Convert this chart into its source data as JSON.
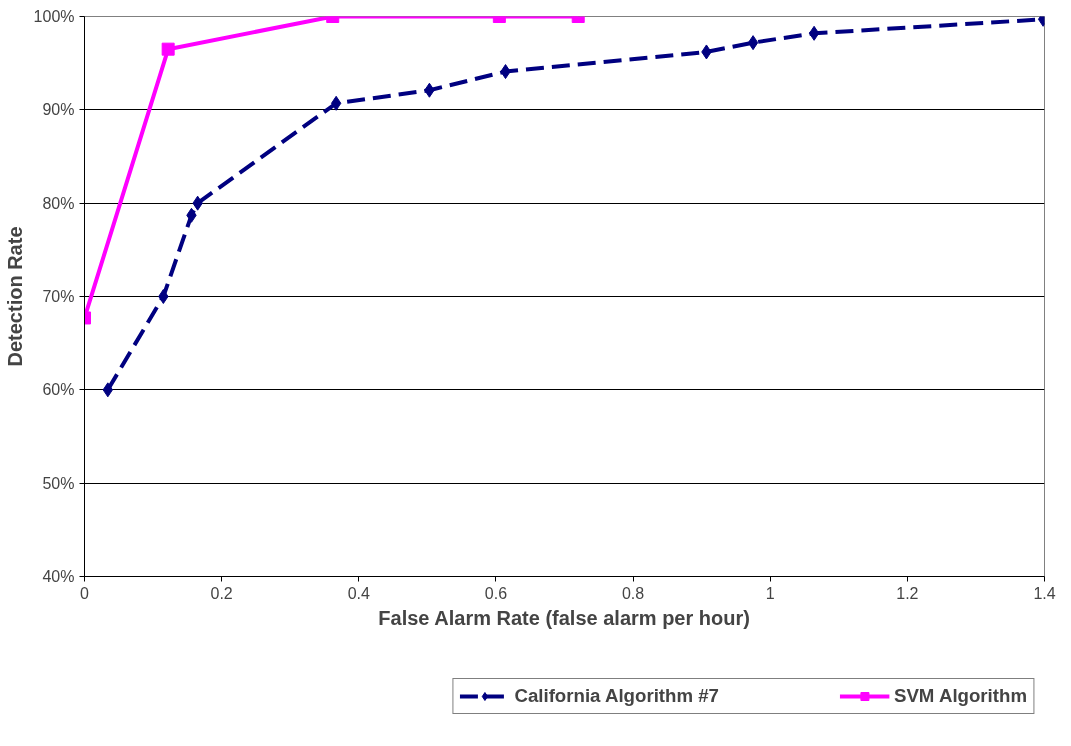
{
  "chart_data": {
    "type": "line",
    "xlabel": "False Alarm Rate (false alarm per hour)",
    "ylabel": "Detection Rate",
    "xlim": [
      0,
      1.4
    ],
    "xticks": [
      0,
      0.2,
      0.4,
      0.6,
      0.8,
      1,
      1.2,
      1.4
    ],
    "ylim": [
      40,
      100
    ],
    "yticks": [
      {
        "value": 40,
        "label": "40%"
      },
      {
        "value": 50,
        "label": "50%"
      },
      {
        "value": 60,
        "label": "60%"
      },
      {
        "value": 70,
        "label": "70%"
      },
      {
        "value": 80,
        "label": "80%"
      },
      {
        "value": 90,
        "label": "90%"
      },
      {
        "value": 100,
        "label": "100%"
      }
    ],
    "grid": "y",
    "legend": "bottom",
    "series": [
      {
        "name": "California Algorithm #7",
        "color": "#000080",
        "marker": "diamond",
        "line_style": "dashed",
        "x": [
          0.034,
          0.115,
          0.156,
          0.165,
          0.367,
          0.503,
          0.614,
          0.907,
          0.975,
          1.064,
          1.398
        ],
        "values": [
          60,
          70,
          78.7,
          80,
          90.7,
          92.1,
          94.1,
          96.2,
          97.2,
          98.2,
          99.7
        ]
      },
      {
        "name": "SVM Algorithm",
        "color": "#ff00ff",
        "marker": "square",
        "line_style": "solid",
        "x": [
          0,
          0.122,
          0.362,
          0.605,
          0.72
        ],
        "values": [
          67.7,
          96.5,
          100,
          100,
          100
        ]
      }
    ]
  }
}
